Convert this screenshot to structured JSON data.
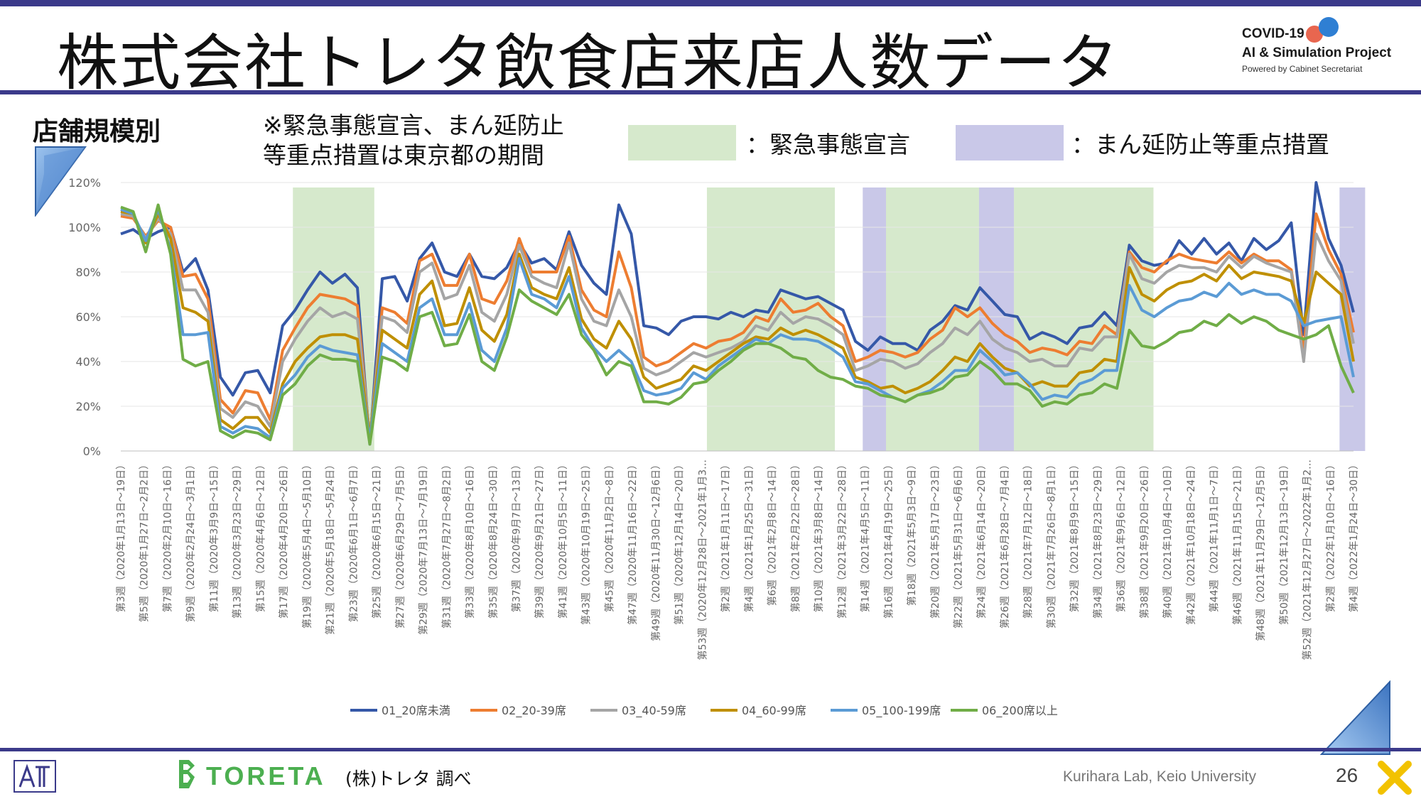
{
  "header": {
    "title": "株式会社トレタ飲食店来店人数データ",
    "logo_line1": "COVID-19",
    "logo_line2": "AI & Simulation Project",
    "logo_line3": "Powered by Cabinet Secretariat"
  },
  "section_label": "店舗規模別",
  "note_line1": "※緊急事態宣言、まん延防止",
  "note_line2": "等重点措置は東京都の期間",
  "legend_boxes": {
    "emergency_label": "：緊急事態宣言",
    "priority_label": "：まん延防止等重点措置",
    "emergency_color": "#d6e9cc",
    "priority_color": "#c9c8e8"
  },
  "footer": {
    "brand": "TORETA",
    "source": "(株)トレタ 調べ",
    "lab": "Kurihara Lab, Keio University",
    "page": "26"
  },
  "chart_data": {
    "type": "line",
    "y_ticks": [
      "0%",
      "20%",
      "40%",
      "60%",
      "80%",
      "100%",
      "120%"
    ],
    "ylim": [
      0,
      120
    ],
    "x_labels": [
      "第3週（2020年1月13日～19日）",
      "第5週（2020年1月27日～2月2日）",
      "第7週（2020年2月10日～16日）",
      "第9週（2020年2月24日～3月1日）",
      "第11週（2020年3月9日～15日）",
      "第13週（2020年3月23日～29日）",
      "第15週（2020年4月6日～12日）",
      "第17週（2020年4月20日～26日）",
      "第19週（2020年5月4日～5月10日）",
      "第21週（2020年5月18日～5月24日）",
      "第23週（2020年6月1日～6月7日）",
      "第25週（2020年6月15日～21日）",
      "第27週（2020年6月29日～7月5日）",
      "第29週（2020年7月13日～7月19日）",
      "第31週（2020年7月27日～8月2日）",
      "第33週（2020年8月10日～16日）",
      "第35週（2020年8月24日～30日）",
      "第37週（2020年9月7日～13日）",
      "第39週（2020年9月21日～27日）",
      "第41週（2020年10月5日～11日）",
      "第43週（2020年10月19日～25日）",
      "第45週（2020年11月2日～8日）",
      "第47週（2020年11月16日～22日）",
      "第49週（2020年11月30日～12月6日）",
      "第51週（2020年12月14日～20日）",
      "第53週（2020年12月28日～2021年1月3…",
      "第2週（2021年1月11日～17日）",
      "第4週（2021年1月25日～31日）",
      "第6週（2021年2月8日～14日）",
      "第8週（2021年2月22日～28日）",
      "第10週（2021年3月8日～14日）",
      "第12週（2021年3月22日～28日）",
      "第14週（2021年4月5日～11日）",
      "第16週（2021年4月19日～25日）",
      "第18週（2021年5月3日～9日）",
      "第20週（2021年5月17日～23日）",
      "第22週（2021年5月31日～6月6日）",
      "第24週（2021年6月14日～20日）",
      "第26週（2021年6月28日～7月4日）",
      "第28週（2021年7月12日～18日）",
      "第30週（2021年7月26日～8月1日）",
      "第32週（2021年8月9日～15日）",
      "第34週（2021年8月23日～29日）",
      "第36週（2021年9月6日～12日）",
      "第38週（2021年9月20日～26日）",
      "第40週（2021年10月4日～10日）",
      "第42週（2021年10月18日～24日）",
      "第44週（2021年11月1日～7日）",
      "第46週（2021年11月15日～21日）",
      "第48週（2021年11月29日～12月5日）",
      "第50週（2021年12月13日～19日）",
      "第52週（2021年12月27日～2022年1月2…",
      "第2週（2022年1月10日～16日）",
      "第4週（2022年1月24日～30日）"
    ],
    "emergency_periods": [
      [
        7.4,
        10.9
      ],
      [
        25.2,
        30.7
      ],
      [
        32.9,
        36.9
      ],
      [
        38.4,
        44.4
      ]
    ],
    "priority_periods": [
      [
        31.9,
        32.9
      ],
      [
        36.9,
        38.4
      ],
      [
        52.4,
        53.5
      ]
    ],
    "series": [
      {
        "name": "01_20席未満",
        "color": "#3558a8",
        "values": [
          97,
          99,
          95,
          98,
          100,
          80,
          86,
          72,
          33,
          25,
          35,
          36,
          26,
          56,
          63,
          72,
          80,
          75,
          79,
          73,
          3,
          77,
          78,
          67,
          86,
          93,
          80,
          78,
          88,
          78,
          77,
          82,
          93,
          84,
          86,
          81,
          98,
          83,
          75,
          70,
          110,
          97,
          56,
          55,
          52,
          58,
          60,
          60,
          59,
          62,
          60,
          63,
          62,
          72,
          70,
          68,
          69,
          66,
          63,
          49,
          45,
          51,
          48,
          48,
          45,
          54,
          58,
          65,
          63,
          73,
          67,
          61,
          60,
          50,
          53,
          51,
          48,
          55,
          56,
          62,
          56,
          92,
          85,
          83,
          84,
          94,
          88,
          95,
          88,
          93,
          85,
          95,
          90,
          94,
          102,
          52,
          124,
          95,
          83,
          62
        ]
      },
      {
        "name": "02_20-39席",
        "color": "#ed7d31",
        "values": [
          105,
          104,
          96,
          103,
          100,
          78,
          79,
          68,
          23,
          17,
          27,
          26,
          14,
          45,
          55,
          64,
          70,
          69,
          68,
          65,
          5,
          64,
          62,
          57,
          85,
          88,
          74,
          74,
          88,
          68,
          66,
          76,
          95,
          80,
          80,
          80,
          96,
          72,
          63,
          60,
          89,
          73,
          42,
          38,
          40,
          44,
          48,
          46,
          49,
          50,
          53,
          60,
          58,
          68,
          62,
          63,
          66,
          60,
          56,
          40,
          42,
          45,
          44,
          42,
          44,
          50,
          54,
          64,
          60,
          64,
          57,
          52,
          49,
          44,
          46,
          45,
          43,
          49,
          48,
          56,
          52,
          89,
          82,
          80,
          85,
          88,
          86,
          85,
          84,
          89,
          84,
          88,
          85,
          85,
          81,
          45,
          106,
          90,
          79,
          53
        ]
      },
      {
        "name": "03_40-59席",
        "color": "#a5a5a5",
        "values": [
          106,
          105,
          95,
          104,
          97,
          72,
          72,
          62,
          19,
          15,
          22,
          20,
          11,
          40,
          50,
          58,
          64,
          60,
          62,
          59,
          6,
          60,
          58,
          53,
          80,
          84,
          68,
          70,
          83,
          62,
          58,
          70,
          92,
          78,
          75,
          73,
          93,
          68,
          58,
          56,
          72,
          60,
          37,
          34,
          36,
          40,
          44,
          42,
          44,
          46,
          49,
          56,
          54,
          62,
          57,
          60,
          59,
          56,
          52,
          36,
          38,
          41,
          40,
          37,
          39,
          44,
          48,
          55,
          52,
          58,
          50,
          46,
          44,
          40,
          41,
          38,
          38,
          46,
          45,
          51,
          51,
          88,
          77,
          75,
          80,
          83,
          82,
          82,
          80,
          87,
          82,
          87,
          84,
          82,
          80,
          40,
          97,
          85,
          76,
          48
        ]
      },
      {
        "name": "04_60-99席",
        "color": "#bf8f00",
        "values": [
          107,
          106,
          93,
          106,
          95,
          64,
          62,
          58,
          14,
          10,
          15,
          15,
          8,
          30,
          40,
          46,
          51,
          52,
          52,
          50,
          6,
          54,
          50,
          46,
          70,
          76,
          56,
          57,
          73,
          54,
          49,
          61,
          88,
          73,
          70,
          68,
          82,
          59,
          50,
          46,
          58,
          50,
          33,
          28,
          30,
          32,
          38,
          36,
          40,
          44,
          48,
          51,
          50,
          55,
          52,
          54,
          52,
          49,
          46,
          33,
          31,
          28,
          29,
          26,
          28,
          31,
          36,
          42,
          40,
          48,
          42,
          37,
          35,
          29,
          31,
          29,
          29,
          35,
          36,
          41,
          40,
          82,
          70,
          67,
          72,
          75,
          76,
          79,
          76,
          83,
          77,
          80,
          79,
          78,
          76,
          57,
          80,
          75,
          70,
          40
        ]
      },
      {
        "name": "05_100-199席",
        "color": "#5b9bd5",
        "values": [
          108,
          106,
          94,
          108,
          90,
          52,
          52,
          53,
          11,
          8,
          11,
          10,
          6,
          28,
          34,
          42,
          47,
          45,
          44,
          43,
          5,
          48,
          44,
          40,
          64,
          68,
          52,
          52,
          66,
          45,
          40,
          55,
          86,
          70,
          68,
          64,
          78,
          55,
          46,
          40,
          45,
          40,
          27,
          25,
          26,
          28,
          35,
          32,
          38,
          42,
          46,
          50,
          48,
          52,
          50,
          50,
          49,
          46,
          42,
          31,
          30,
          27,
          24,
          22,
          25,
          27,
          31,
          36,
          36,
          45,
          40,
          34,
          35,
          30,
          23,
          25,
          24,
          30,
          32,
          36,
          36,
          74,
          63,
          60,
          64,
          67,
          68,
          71,
          69,
          75,
          70,
          72,
          70,
          70,
          67,
          56,
          58,
          59,
          60,
          33
        ]
      },
      {
        "name": "06_200席以上",
        "color": "#70ad47",
        "values": [
          109,
          107,
          89,
          110,
          88,
          41,
          38,
          40,
          9,
          6,
          9,
          8,
          5,
          25,
          30,
          38,
          43,
          41,
          41,
          40,
          3,
          42,
          40,
          36,
          60,
          62,
          47,
          48,
          61,
          40,
          36,
          51,
          72,
          67,
          64,
          61,
          70,
          52,
          45,
          34,
          40,
          38,
          22,
          22,
          21,
          24,
          30,
          31,
          36,
          40,
          45,
          48,
          48,
          46,
          42,
          41,
          36,
          33,
          32,
          29,
          28,
          25,
          24,
          22,
          25,
          26,
          28,
          33,
          34,
          40,
          36,
          30,
          30,
          27,
          20,
          22,
          21,
          25,
          26,
          30,
          28,
          54,
          47,
          46,
          49,
          53,
          54,
          58,
          56,
          61,
          57,
          60,
          58,
          54,
          52,
          50,
          52,
          56,
          38,
          26
        ]
      }
    ]
  }
}
